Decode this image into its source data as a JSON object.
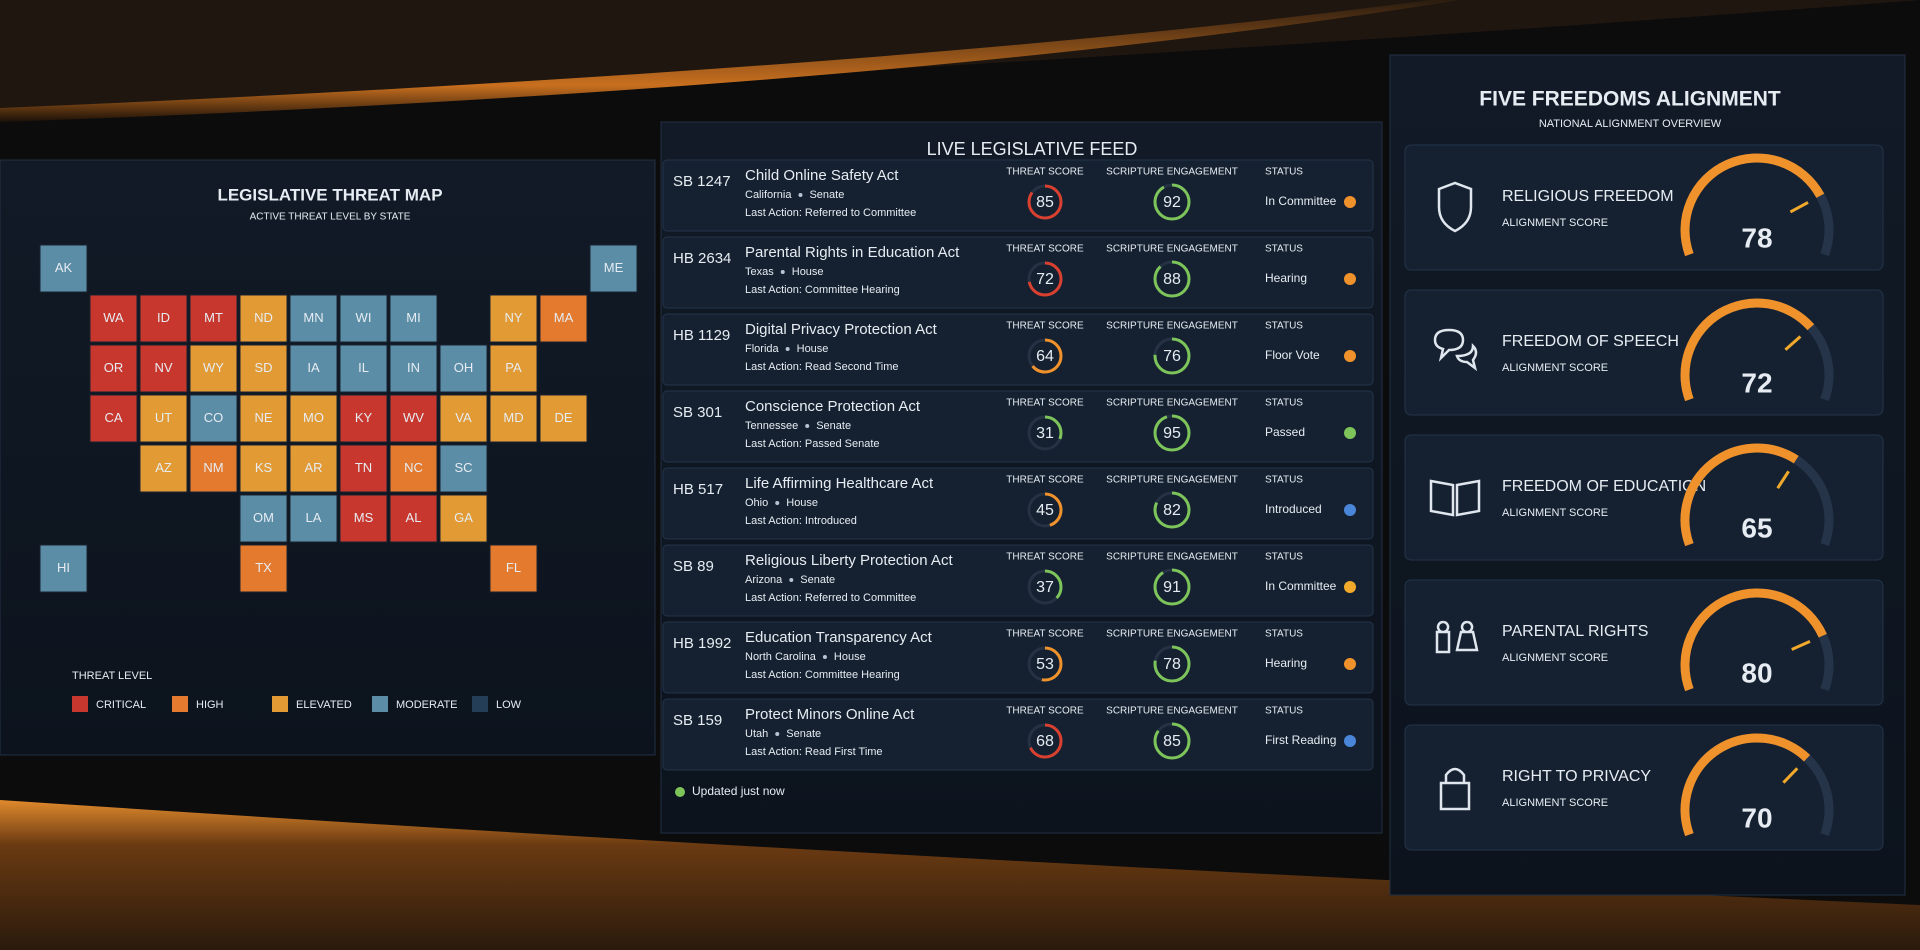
{
  "map": {
    "title": "LEGISLATIVE THREAT MAP",
    "subtitle": "ACTIVE THREAT LEVEL BY STATE",
    "states": [
      {
        "label": "WA",
        "color": "#c8372d"
      },
      {
        "label": "OR",
        "color": "#c8372d"
      },
      {
        "label": "CA",
        "color": "#c8372d"
      },
      {
        "label": "NV",
        "color": "#c8372d"
      },
      {
        "label": "ID",
        "color": "#c8372d"
      },
      {
        "label": "MT",
        "color": "#c8372d"
      },
      {
        "label": "ND",
        "color": "#e29a34"
      },
      {
        "label": "SD",
        "color": "#e29a34"
      },
      {
        "label": "WY",
        "color": "#e29a34"
      },
      {
        "label": "NE",
        "color": "#e29a34"
      },
      {
        "label": "KS",
        "color": "#e29a34"
      },
      {
        "label": "UT",
        "color": "#e29a34"
      },
      {
        "label": "AZ",
        "color": "#e29a34"
      },
      {
        "label": "CO",
        "color": "#5b8da6"
      },
      {
        "label": "NM",
        "color": "#e37a2e"
      },
      {
        "label": "TX",
        "color": "#e37a2e"
      },
      {
        "label": "OM",
        "color": "#5b8da6"
      },
      {
        "label": "MN",
        "color": "#5b8da6"
      },
      {
        "label": "IA",
        "color": "#5b8da6"
      },
      {
        "label": "WI",
        "color": "#5b8da6"
      },
      {
        "label": "MI",
        "color": "#5b8da6"
      },
      {
        "label": "IL",
        "color": "#5b8da6"
      },
      {
        "label": "IN",
        "color": "#5b8da6"
      },
      {
        "label": "OH",
        "color": "#5b8da6"
      },
      {
        "label": "MO",
        "color": "#e29a34"
      },
      {
        "label": "AR",
        "color": "#e29a34"
      },
      {
        "label": "LA",
        "color": "#5b8da6"
      },
      {
        "label": "MS",
        "color": "#c8372d"
      },
      {
        "label": "AL",
        "color": "#c8372d"
      },
      {
        "label": "TN",
        "color": "#c8372d"
      },
      {
        "label": "KY",
        "color": "#c8372d"
      },
      {
        "label": "WV",
        "color": "#c8372d"
      },
      {
        "label": "VA",
        "color": "#e29a34"
      },
      {
        "label": "NC",
        "color": "#e37a2e"
      },
      {
        "label": "SC",
        "color": "#5b8da6"
      },
      {
        "label": "GA",
        "color": "#e29a34"
      },
      {
        "label": "FL",
        "color": "#e37a2e"
      },
      {
        "label": "PA",
        "color": "#e29a34"
      },
      {
        "label": "NY",
        "color": "#e29a34"
      },
      {
        "label": "ME",
        "color": "#5b8da6"
      },
      {
        "label": "MA",
        "color": "#e37a2e"
      },
      {
        "label": "DE",
        "color": "#e29a34"
      },
      {
        "label": "MD",
        "color": "#e29a34"
      },
      {
        "label": "AK",
        "color": "#5b8da6"
      },
      {
        "label": "HI",
        "color": "#5b8da6"
      }
    ],
    "legend": {
      "title": "THREAT LEVEL",
      "items": [
        {
          "label": "CRITICAL",
          "color": "#c8372d"
        },
        {
          "label": "HIGH",
          "color": "#e37a2e"
        },
        {
          "label": "ELEVATED",
          "color": "#e29a34"
        },
        {
          "label": "MODERATE",
          "color": "#5b8da6"
        },
        {
          "label": "LOW",
          "color": "#243e58"
        }
      ]
    }
  },
  "feed": {
    "title": "LIVE LEGISLATIVE FEED",
    "headers": {
      "threat": "THREAT SCORE",
      "scripture": "SCRIPTURE ENGAGEMENT",
      "status": "STATUS"
    },
    "bills": [
      {
        "id": "SB 1247",
        "title": "Child Online Safety Act",
        "state": "California",
        "chamber": "Senate",
        "last_action": "Last Action: Referred to Committee",
        "threat_score": 85,
        "threat_color": "#d9402f",
        "scripture_engagement": 92,
        "status": "In Committee",
        "status_color": "#f0922b"
      },
      {
        "id": "HB 2634",
        "title": "Parental Rights in Education Act",
        "state": "Texas",
        "chamber": "House",
        "last_action": "Last Action: Committee Hearing",
        "threat_score": 72,
        "threat_color": "#d9402f",
        "scripture_engagement": 88,
        "status": "Hearing",
        "status_color": "#f0922b"
      },
      {
        "id": "HB 1129",
        "title": "Digital Privacy Protection Act",
        "state": "Florida",
        "chamber": "House",
        "last_action": "Last Action: Read Second Time",
        "threat_score": 64,
        "threat_color": "#f0922b",
        "scripture_engagement": 76,
        "status": "Floor Vote",
        "status_color": "#f0922b"
      },
      {
        "id": "SB 301",
        "title": "Conscience Protection Act",
        "state": "Tennessee",
        "chamber": "Senate",
        "last_action": "Last Action: Passed Senate",
        "threat_score": 31,
        "threat_color": "#7dc45a",
        "scripture_engagement": 95,
        "status": "Passed",
        "status_color": "#7dc45a"
      },
      {
        "id": "HB 517",
        "title": "Life Affirming Healthcare Act",
        "state": "Ohio",
        "chamber": "House",
        "last_action": "Last Action: Introduced",
        "threat_score": 45,
        "threat_color": "#f0922b",
        "scripture_engagement": 82,
        "status": "Introduced",
        "status_color": "#4a86d8"
      },
      {
        "id": "SB 89",
        "title": "Religious Liberty Protection Act",
        "state": "Arizona",
        "chamber": "Senate",
        "last_action": "Last Action: Referred to Committee",
        "threat_score": 37,
        "threat_color": "#7dc45a",
        "scripture_engagement": 91,
        "status": "In Committee",
        "status_color": "#f0a92b"
      },
      {
        "id": "HB 1992",
        "title": "Education Transparency Act",
        "state": "North Carolina",
        "chamber": "House",
        "last_action": "Last Action: Committee Hearing",
        "threat_score": 53,
        "threat_color": "#f0922b",
        "scripture_engagement": 78,
        "status": "Hearing",
        "status_color": "#f0922b"
      },
      {
        "id": "SB 159",
        "title": "Protect Minors Online Act",
        "state": "Utah",
        "chamber": "Senate",
        "last_action": "Last Action: Read First Time",
        "threat_score": 68,
        "threat_color": "#d9402f",
        "scripture_engagement": 85,
        "status": "First Reading",
        "status_color": "#4a86d8"
      }
    ],
    "footer": "Updated just now"
  },
  "freedoms": {
    "title": "FIVE FREEDOMS ALIGNMENT",
    "subtitle": "NATIONAL ALIGNMENT OVERVIEW",
    "score_label": "ALIGNMENT SCORE",
    "items": [
      {
        "name": "RELIGIOUS FREEDOM",
        "score": 78
      },
      {
        "name": "FREEDOM OF SPEECH",
        "score": 72
      },
      {
        "name": "FREEDOM OF EDUCATION",
        "score": 65
      },
      {
        "name": "PARENTAL RIGHTS",
        "score": 80
      },
      {
        "name": "RIGHT TO PRIVACY",
        "score": 70
      }
    ]
  }
}
